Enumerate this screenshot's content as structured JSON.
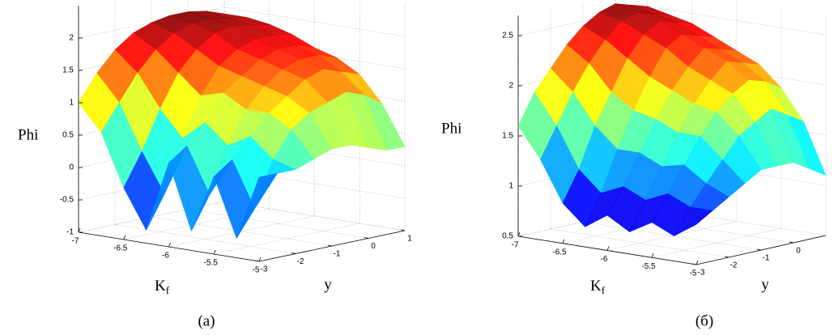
{
  "chart_data": [
    {
      "type": "surface",
      "caption": "(a)",
      "z_label": "Phi",
      "x_label": "K",
      "x_label_sub": "f",
      "y_label": "y",
      "colormap": "jet",
      "grid": true,
      "xlim": [
        -7,
        -5
      ],
      "ylim": [
        -3,
        1
      ],
      "zlim": [
        -1,
        2.5
      ],
      "xticks": [
        -7,
        -6.5,
        -6,
        -5.5,
        -5
      ],
      "yticks": [
        -3,
        -2,
        -1,
        0,
        1
      ],
      "zticks": [
        -1,
        -0.5,
        0,
        0.5,
        1,
        1.5,
        2
      ],
      "x": [
        -7,
        -6.75,
        -6.5,
        -6.25,
        -6,
        -5.75,
        -5.5,
        -5.25,
        -5
      ],
      "y": [
        -3,
        -2.5,
        -2,
        -1.5,
        -1,
        -0.5,
        0,
        0.5,
        1
      ],
      "z": [
        [
          1.0,
          0.6,
          -0.2,
          -0.8,
          0.3,
          -0.7,
          0.2,
          -0.7,
          0.3
        ],
        [
          1.4,
          1.0,
          0.3,
          -0.3,
          0.5,
          -0.2,
          0.4,
          -0.3,
          0.3
        ],
        [
          1.7,
          1.4,
          0.9,
          0.5,
          0.8,
          0.5,
          0.7,
          0.4,
          0.3
        ],
        [
          1.9,
          1.7,
          1.4,
          1.1,
          1.2,
          1.0,
          1.0,
          0.8,
          0.4
        ],
        [
          2.0,
          1.9,
          1.7,
          1.5,
          1.4,
          1.3,
          1.2,
          1.0,
          0.5
        ],
        [
          2.05,
          2.0,
          1.9,
          1.7,
          1.6,
          1.5,
          1.4,
          1.1,
          0.5
        ],
        [
          2.05,
          2.0,
          1.95,
          1.8,
          1.7,
          1.6,
          1.5,
          1.2,
          0.4
        ],
        [
          2.0,
          1.95,
          1.9,
          1.8,
          1.7,
          1.6,
          1.4,
          1.1,
          0.3
        ],
        [
          1.9,
          1.9,
          1.85,
          1.75,
          1.6,
          1.5,
          1.3,
          0.9,
          0.3
        ]
      ]
    },
    {
      "type": "surface",
      "caption": "(б)",
      "z_label": "Phi",
      "x_label": "K",
      "x_label_sub": "f",
      "y_label": "y",
      "colormap": "jet",
      "grid": true,
      "xlim": [
        -7,
        -5
      ],
      "ylim": [
        -3,
        1
      ],
      "zlim": [
        0.5,
        2.7
      ],
      "xticks": [
        -7,
        -6.5,
        -6,
        -5.5,
        -5
      ],
      "yticks": [
        -3,
        -2,
        -1,
        0
      ],
      "zticks": [
        0.5,
        1,
        1.5,
        2,
        2.5
      ],
      "x": [
        -7,
        -6.75,
        -6.5,
        -6.25,
        -6,
        -5.75,
        -5.5,
        -5.25,
        -5
      ],
      "y": [
        -3,
        -2.5,
        -2,
        -1.5,
        -1,
        -0.5,
        0,
        0.5,
        1
      ],
      "z": [
        [
          1.6,
          1.3,
          0.9,
          0.7,
          0.85,
          0.72,
          0.85,
          0.75,
          0.9
        ],
        [
          1.9,
          1.6,
          1.2,
          1.0,
          1.1,
          1.0,
          1.1,
          1.0,
          1.0
        ],
        [
          2.1,
          1.9,
          1.6,
          1.4,
          1.4,
          1.3,
          1.35,
          1.2,
          1.1
        ],
        [
          2.3,
          2.15,
          1.9,
          1.75,
          1.7,
          1.6,
          1.6,
          1.4,
          1.2
        ],
        [
          2.45,
          2.35,
          2.2,
          2.05,
          1.95,
          1.85,
          1.8,
          1.6,
          1.3
        ],
        [
          2.55,
          2.5,
          2.4,
          2.3,
          2.15,
          2.05,
          1.95,
          1.7,
          1.3
        ],
        [
          2.6,
          2.55,
          2.5,
          2.4,
          2.3,
          2.2,
          2.05,
          1.8,
          1.3
        ],
        [
          2.55,
          2.5,
          2.45,
          2.35,
          2.25,
          2.15,
          2.0,
          1.7,
          1.2
        ],
        [
          2.5,
          2.45,
          2.4,
          2.3,
          2.2,
          2.1,
          1.9,
          1.6,
          1.1
        ]
      ]
    }
  ]
}
